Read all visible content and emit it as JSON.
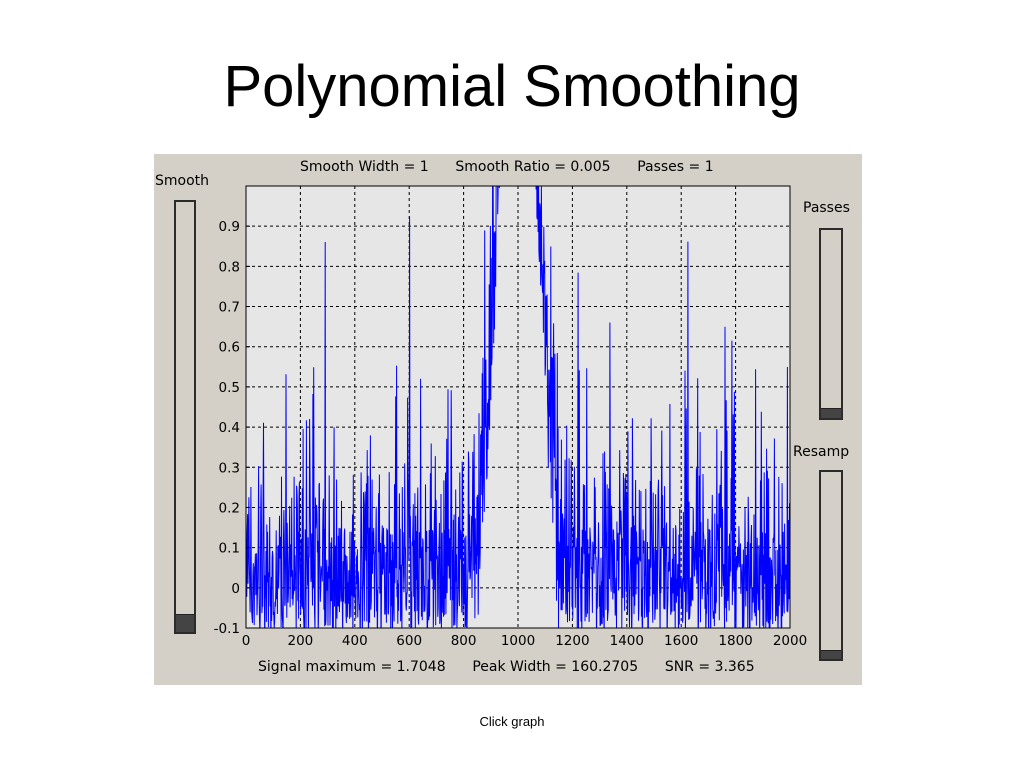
{
  "slide": {
    "title": "Polynomial Smoothing",
    "caption": "Click graph"
  },
  "window": {
    "header_text": "Smooth Width = 1      Smooth Ratio = 0.005      Passes = 1",
    "footer_text": "Signal maximum = 1.7048      Peak Width = 160.2705      SNR = 3.365",
    "controls": {
      "smooth_label": "Smooth",
      "passes_label": "Passes",
      "resamp_label": "Resamp",
      "smooth_level": 0.04,
      "passes_level": 0.03,
      "resamp_level": 0.04
    }
  },
  "colors": {
    "signal": "#0000ff",
    "plot_background": "#e6e6e6",
    "window_background": "#d4d0c8",
    "grid": "#000000"
  },
  "chart_data": {
    "type": "line",
    "xlim": [
      0,
      2000
    ],
    "ylim": [
      -0.1,
      1.0
    ],
    "xticks": [
      0,
      200,
      400,
      600,
      800,
      1000,
      1200,
      1400,
      1600,
      1800,
      2000
    ],
    "yticks": [
      -0.1,
      0,
      0.1,
      0.2,
      0.3,
      0.4,
      0.5,
      0.6,
      0.7,
      0.8,
      0.9
    ],
    "grid": "dashed",
    "series": [
      {
        "color": "#0000ff",
        "peak_center": 1000,
        "peak_width": 160.2705,
        "peak_height": 1.7048,
        "noise_floor_mean": 0.2,
        "noise_spike_max": 0.8
      }
    ]
  }
}
